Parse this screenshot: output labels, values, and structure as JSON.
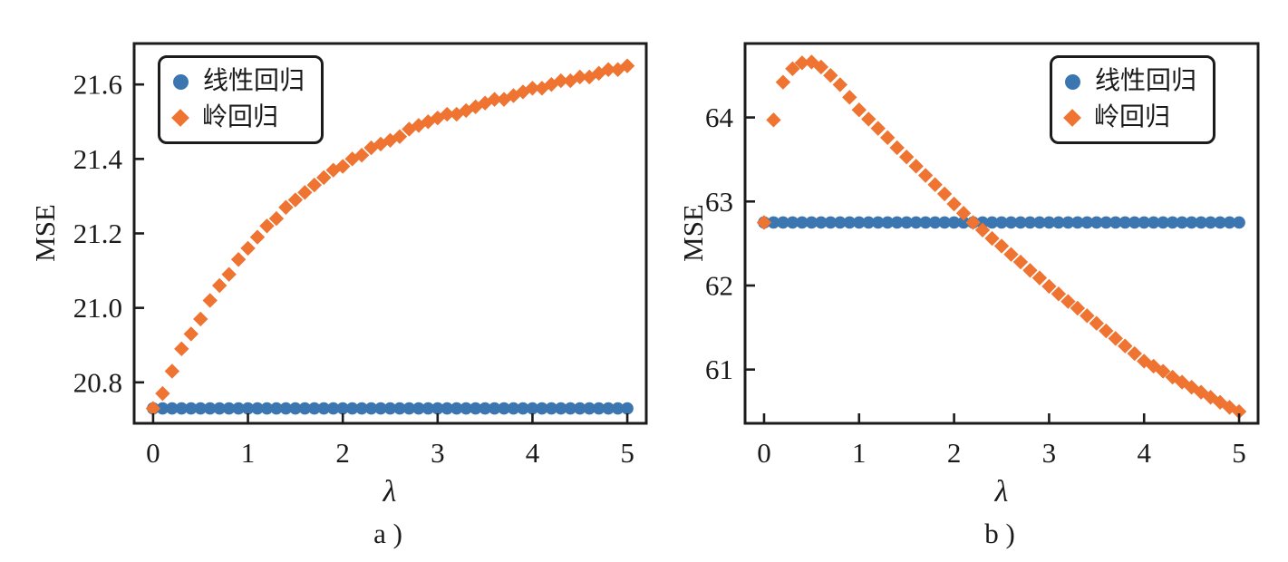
{
  "style": {
    "background": "#FFFFFF",
    "axis_color": "#1C1C1C",
    "text_color": "#1A1A1A",
    "blue": "#3B76B0",
    "orange": "#EF7432"
  },
  "chart_data": [
    {
      "id": "a",
      "type": "scatter",
      "caption": "a )",
      "xlabel": "λ",
      "ylabel": "MSE",
      "xlim": [
        -0.2,
        5.2
      ],
      "ylim": [
        20.69,
        21.71
      ],
      "x_ticks": [
        0,
        1,
        2,
        3,
        4,
        5
      ],
      "x_tick_labels": [
        "0",
        "1",
        "2",
        "3",
        "4",
        "5"
      ],
      "y_ticks": [
        20.8,
        21.0,
        21.2,
        21.4,
        21.6
      ],
      "y_tick_labels": [
        "20.8",
        "21.0",
        "21.2",
        "21.4",
        "21.6"
      ],
      "legend_position": "upper-left",
      "grid": false,
      "x": [
        0.0,
        0.1,
        0.2,
        0.3,
        0.4,
        0.5,
        0.6,
        0.7,
        0.8,
        0.9,
        1.0,
        1.1,
        1.2,
        1.3,
        1.4,
        1.5,
        1.6,
        1.7,
        1.8,
        1.9,
        2.0,
        2.1,
        2.2,
        2.3,
        2.4,
        2.5,
        2.6,
        2.7,
        2.8,
        2.9,
        3.0,
        3.1,
        3.2,
        3.3,
        3.4,
        3.5,
        3.6,
        3.7,
        3.8,
        3.9,
        4.0,
        4.1,
        4.2,
        4.3,
        4.4,
        4.5,
        4.6,
        4.7,
        4.8,
        4.9,
        5.0
      ],
      "series": [
        {
          "name": "线性回归",
          "marker": "circle",
          "color": "#3B76B0",
          "values": [
            20.73,
            20.73,
            20.73,
            20.73,
            20.73,
            20.73,
            20.73,
            20.73,
            20.73,
            20.73,
            20.73,
            20.73,
            20.73,
            20.73,
            20.73,
            20.73,
            20.73,
            20.73,
            20.73,
            20.73,
            20.73,
            20.73,
            20.73,
            20.73,
            20.73,
            20.73,
            20.73,
            20.73,
            20.73,
            20.73,
            20.73,
            20.73,
            20.73,
            20.73,
            20.73,
            20.73,
            20.73,
            20.73,
            20.73,
            20.73,
            20.73,
            20.73,
            20.73,
            20.73,
            20.73,
            20.73,
            20.73,
            20.73,
            20.73,
            20.73,
            20.73
          ]
        },
        {
          "name": "岭回归",
          "marker": "diamond",
          "color": "#EF7432",
          "values": [
            20.73,
            20.77,
            20.83,
            20.89,
            20.93,
            20.97,
            21.02,
            21.06,
            21.09,
            21.13,
            21.16,
            21.19,
            21.22,
            21.24,
            21.27,
            21.29,
            21.31,
            21.33,
            21.35,
            21.37,
            21.38,
            21.4,
            21.41,
            21.43,
            21.44,
            21.45,
            21.46,
            21.48,
            21.49,
            21.5,
            21.51,
            21.52,
            21.52,
            21.53,
            21.54,
            21.55,
            21.56,
            21.56,
            21.57,
            21.58,
            21.59,
            21.59,
            21.6,
            21.61,
            21.61,
            21.62,
            21.62,
            21.63,
            21.64,
            21.64,
            21.65
          ]
        }
      ]
    },
    {
      "id": "b",
      "type": "scatter",
      "caption": "b )",
      "xlabel": "λ",
      "ylabel": "MSE",
      "xlim": [
        -0.2,
        5.2
      ],
      "ylim": [
        60.36,
        64.88
      ],
      "x_ticks": [
        0,
        1,
        2,
        3,
        4,
        5
      ],
      "x_tick_labels": [
        "0",
        "1",
        "2",
        "3",
        "4",
        "5"
      ],
      "y_ticks": [
        61,
        62,
        63,
        64
      ],
      "y_tick_labels": [
        "61",
        "62",
        "63",
        "64"
      ],
      "legend_position": "upper-right",
      "grid": false,
      "x": [
        0.0,
        0.1,
        0.2,
        0.3,
        0.4,
        0.5,
        0.6,
        0.7,
        0.8,
        0.9,
        1.0,
        1.1,
        1.2,
        1.3,
        1.4,
        1.5,
        1.6,
        1.7,
        1.8,
        1.9,
        2.0,
        2.1,
        2.2,
        2.3,
        2.4,
        2.5,
        2.6,
        2.7,
        2.8,
        2.9,
        3.0,
        3.1,
        3.2,
        3.3,
        3.4,
        3.5,
        3.6,
        3.7,
        3.8,
        3.9,
        4.0,
        4.1,
        4.2,
        4.3,
        4.4,
        4.5,
        4.6,
        4.7,
        4.8,
        4.9,
        5.0
      ],
      "series": [
        {
          "name": "线性回归",
          "marker": "circle",
          "color": "#3B76B0",
          "values": [
            62.75,
            62.75,
            62.75,
            62.75,
            62.75,
            62.75,
            62.75,
            62.75,
            62.75,
            62.75,
            62.75,
            62.75,
            62.75,
            62.75,
            62.75,
            62.75,
            62.75,
            62.75,
            62.75,
            62.75,
            62.75,
            62.75,
            62.75,
            62.75,
            62.75,
            62.75,
            62.75,
            62.75,
            62.75,
            62.75,
            62.75,
            62.75,
            62.75,
            62.75,
            62.75,
            62.75,
            62.75,
            62.75,
            62.75,
            62.75,
            62.75,
            62.75,
            62.75,
            62.75,
            62.75,
            62.75,
            62.75,
            62.75,
            62.75,
            62.75,
            62.75
          ]
        },
        {
          "name": "岭回归",
          "marker": "diamond",
          "color": "#EF7432",
          "values": [
            62.75,
            63.97,
            64.42,
            64.58,
            64.65,
            64.66,
            64.6,
            64.5,
            64.39,
            64.24,
            64.09,
            63.98,
            63.87,
            63.76,
            63.64,
            63.53,
            63.42,
            63.31,
            63.2,
            63.09,
            62.97,
            62.86,
            62.75,
            62.66,
            62.56,
            62.47,
            62.37,
            62.28,
            62.18,
            62.09,
            61.99,
            61.9,
            61.81,
            61.73,
            61.64,
            61.55,
            61.46,
            61.37,
            61.28,
            61.19,
            61.1,
            61.04,
            60.98,
            60.91,
            60.85,
            60.79,
            60.73,
            60.67,
            60.61,
            60.55,
            60.5
          ]
        }
      ]
    }
  ]
}
